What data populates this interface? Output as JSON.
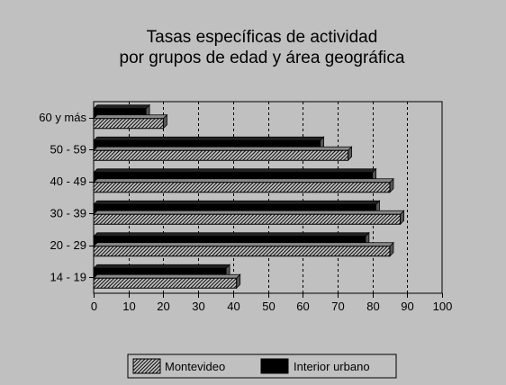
{
  "chart_data": {
    "type": "bar",
    "orientation": "horizontal",
    "title_lines": [
      "Tasas específicas de actividad",
      "por grupos de edad y área geográfica"
    ],
    "categories": [
      "60 y más",
      "50 - 59",
      "40 - 49",
      "30 - 39",
      "20 - 29",
      "14 - 19"
    ],
    "series": [
      {
        "name": "Interior urbano",
        "values": [
          15,
          65,
          80,
          81,
          78,
          38
        ],
        "color": "#000000",
        "pattern": "solid"
      },
      {
        "name": "Montevideo",
        "values": [
          20,
          73,
          85,
          88,
          85,
          41
        ],
        "color": "#555555",
        "pattern": "hatched"
      }
    ],
    "x_ticks": [
      "0",
      "10",
      "20",
      "30",
      "40",
      "50",
      "60",
      "70",
      "80",
      "90",
      "100"
    ],
    "xlim": [
      0,
      100
    ],
    "grid": "vertical-dashed",
    "legend": {
      "placement": "bottom",
      "entries": [
        {
          "label": "Montevideo",
          "pattern": "hatched"
        },
        {
          "label": "Interior urbano",
          "pattern": "solid"
        }
      ]
    },
    "background_color": "#c0c0c0",
    "plot_background_color": "#c0c0c0"
  }
}
